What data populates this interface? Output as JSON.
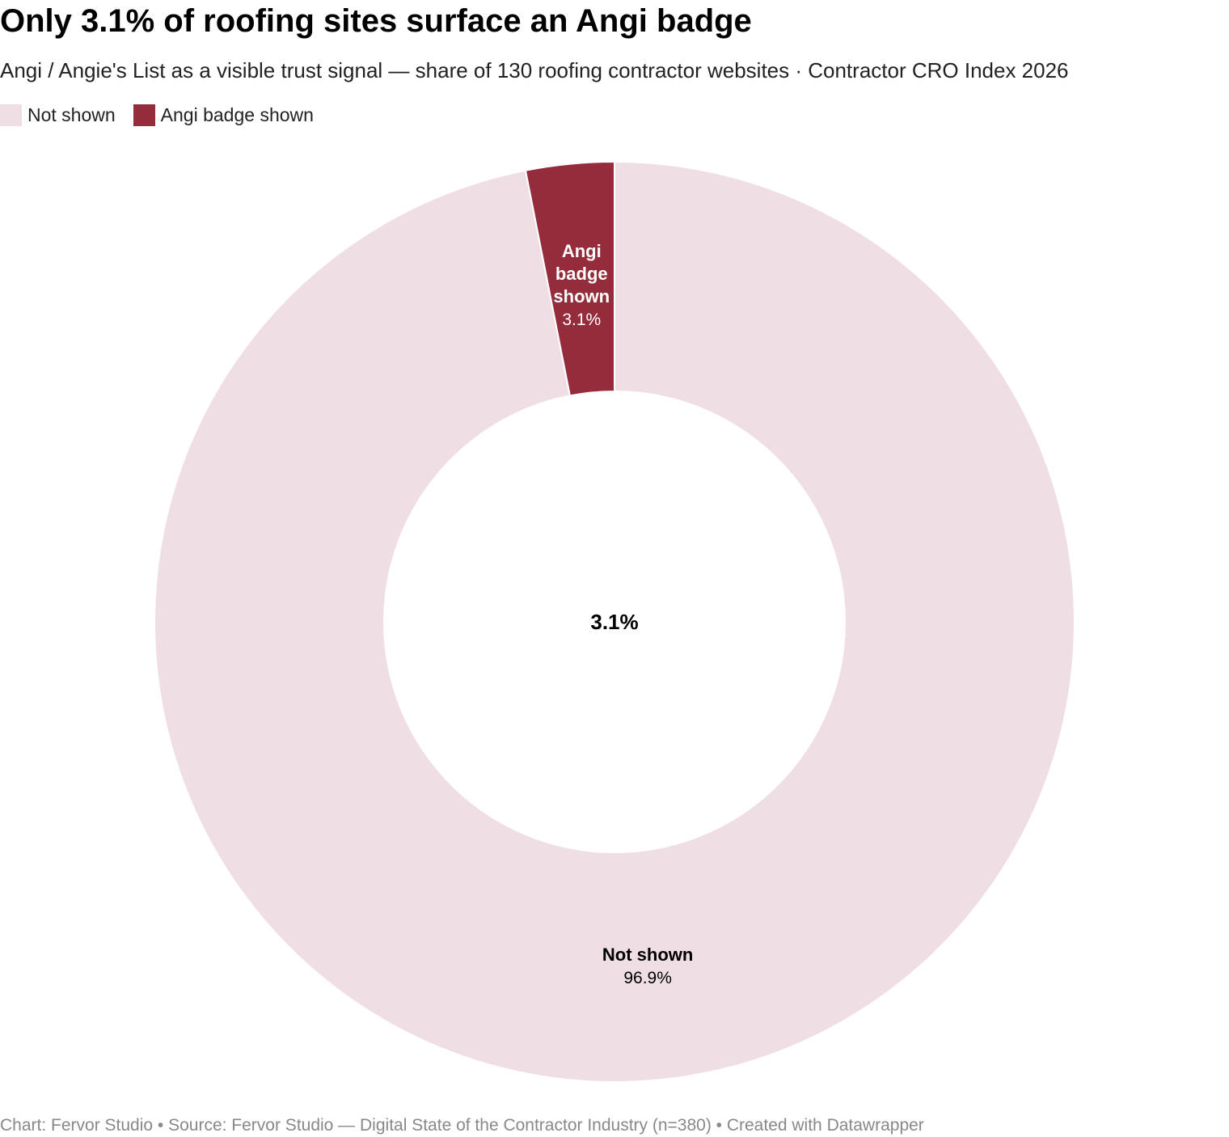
{
  "title": "Only 3.1% of roofing sites surface an Angi badge",
  "subtitle": "Angi / Angie's List as a visible trust signal — share of 130 roofing contractor websites · Contractor CRO Index 2026",
  "legend": [
    {
      "label": "Not shown",
      "color": "#efdfe4"
    },
    {
      "label": "Angi badge shown",
      "color": "#952c3b"
    }
  ],
  "chart_data": {
    "type": "pie",
    "variant": "donut",
    "title": "Only 3.1% of roofing sites surface an Angi badge",
    "subtitle": "Angi / Angie's List as a visible trust signal — share of 130 roofing contractor websites · Contractor CRO Index 2026",
    "slices": [
      {
        "label": "Angi badge shown",
        "value": 3.1,
        "value_label": "3.1%",
        "color": "#952c3b",
        "label_color": "#ffffff"
      },
      {
        "label": "Not shown",
        "value": 96.9,
        "value_label": "96.9%",
        "color": "#efdfe4",
        "label_color": "#000000"
      }
    ],
    "center_label": "3.1%",
    "legend_position": "top-left"
  },
  "footer": "Chart: Fervor Studio • Source: Fervor Studio — Digital State of the Contractor Industry (n=380) • Created with Datawrapper"
}
